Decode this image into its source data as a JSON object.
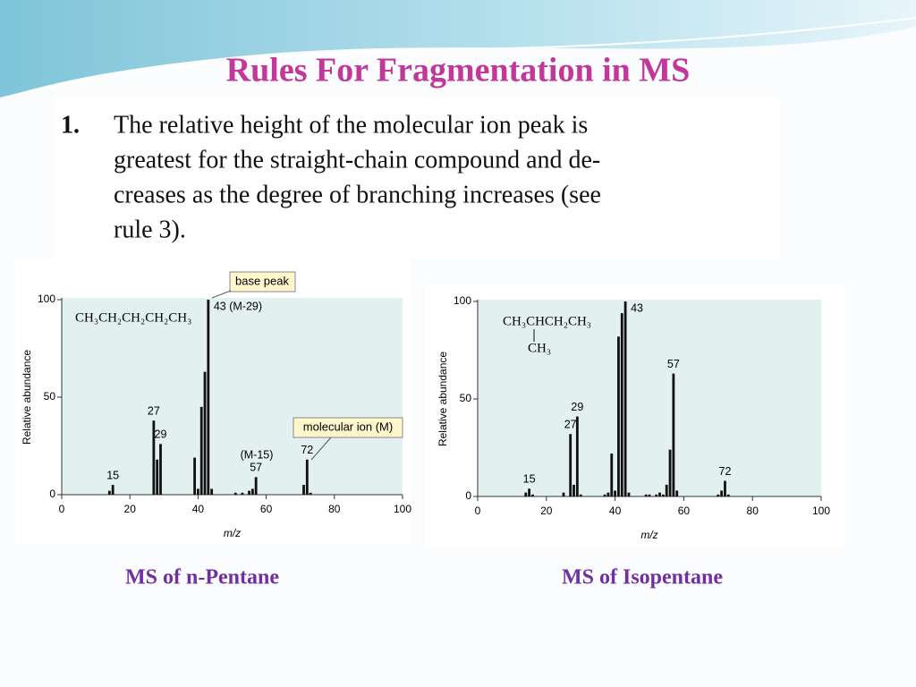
{
  "slide": {
    "title": "Rules For Fragmentation in MS",
    "rule_number": "1.",
    "rule_lines": [
      "The relative height of the molecular ion peak is",
      "greatest for the straight-chain compound and de-",
      "creases as the degree of branching increases (see",
      "rule 3)."
    ]
  },
  "chart_data": [
    {
      "type": "bar",
      "title": "MS of n-Pentane",
      "x_label": "m/z",
      "y_label": "Relative abundance",
      "color": "#111111",
      "formula": [
        "CH₃CH₂CH₂CH₂CH₃"
      ],
      "x": [
        14,
        15,
        27,
        28,
        29,
        39,
        40,
        41,
        42,
        43,
        44,
        51,
        53,
        55,
        56,
        57,
        71,
        72,
        73
      ],
      "values": [
        2,
        5,
        38,
        18,
        26,
        19,
        3,
        45,
        63,
        100,
        3,
        1,
        1,
        2,
        3,
        9,
        5,
        18,
        1
      ],
      "peak_labels": [
        {
          "x": 15,
          "label": "15"
        },
        {
          "x": 27,
          "label": "27"
        },
        {
          "x": 29,
          "label": "29"
        },
        {
          "x": 43,
          "label": "43 (M-29)"
        },
        {
          "x": 57,
          "label": "57"
        },
        {
          "x": 72,
          "label": "72"
        }
      ],
      "annotations": [
        "base peak",
        "molecular ion (M)",
        "(M-15)"
      ],
      "xlim": [
        0,
        100
      ],
      "xticks": [
        0,
        20,
        40,
        60,
        80,
        100
      ],
      "ylim": [
        0,
        100
      ],
      "yticks": [
        0,
        50,
        100
      ]
    },
    {
      "type": "bar",
      "title": "MS of Isopentane",
      "x_label": "m/z",
      "y_label": "Relative abundance",
      "color": "#111111",
      "formula": [
        "CH₃CHCH₂CH₃",
        "CH₃"
      ],
      "x": [
        14,
        15,
        16,
        25,
        27,
        28,
        29,
        30,
        37,
        38,
        39,
        40,
        41,
        42,
        43,
        44,
        49,
        50,
        52,
        53,
        54,
        55,
        56,
        57,
        58,
        70,
        71,
        72,
        73
      ],
      "values": [
        2,
        4,
        1,
        2,
        32,
        6,
        41,
        1,
        1,
        2,
        22,
        3,
        82,
        94,
        100,
        2,
        1,
        1,
        1,
        2,
        1,
        6,
        24,
        63,
        3,
        1,
        3,
        8,
        1
      ],
      "peak_labels": [
        {
          "x": 15,
          "label": "15"
        },
        {
          "x": 27,
          "label": "27"
        },
        {
          "x": 29,
          "label": "29"
        },
        {
          "x": 43,
          "label": "43"
        },
        {
          "x": 57,
          "label": "57"
        },
        {
          "x": 72,
          "label": "72"
        }
      ],
      "xlim": [
        0,
        100
      ],
      "xticks": [
        0,
        20,
        40,
        60,
        80,
        100
      ],
      "ylim": [
        0,
        100
      ],
      "yticks": [
        0,
        50,
        100
      ]
    }
  ]
}
